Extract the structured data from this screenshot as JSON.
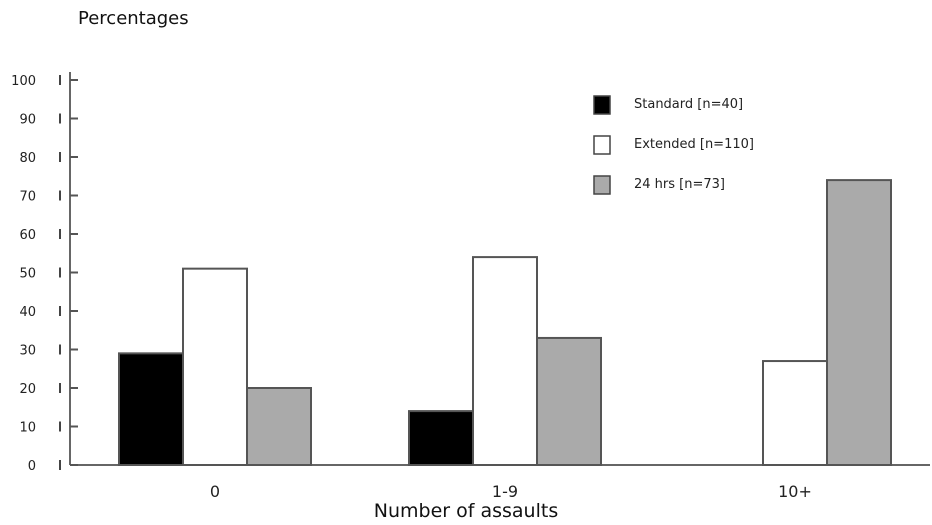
{
  "chart_data": {
    "type": "bar",
    "ylabel": "Percentages",
    "xlabel": "Number of assaults",
    "categories": [
      "0",
      "1-9",
      "10+"
    ],
    "ylim": [
      0,
      100
    ],
    "yticks": [
      0,
      10,
      20,
      30,
      40,
      50,
      60,
      70,
      80,
      90,
      100
    ],
    "series": [
      {
        "name": "Standard [n=40]",
        "color": "#000000",
        "values": [
          29,
          14,
          null
        ]
      },
      {
        "name": "Extended [n=110]",
        "color": "#ffffff",
        "values": [
          51,
          54,
          27
        ]
      },
      {
        "name": "24 hrs [n=73]",
        "color": "#aaaaaa",
        "values": [
          20,
          33,
          74
        ]
      }
    ],
    "legend_position": "top-right",
    "grid": false
  }
}
